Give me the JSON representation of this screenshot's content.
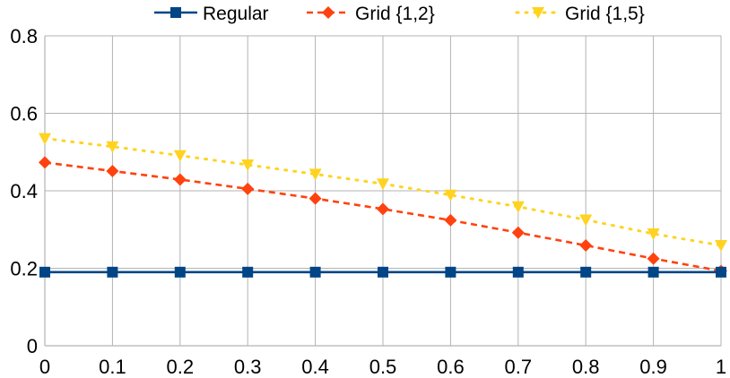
{
  "chart_data": {
    "type": "line",
    "title": "",
    "xlabel": "",
    "ylabel": "",
    "x": [
      0,
      0.1,
      0.2,
      0.3,
      0.4,
      0.5,
      0.6,
      0.7,
      0.8,
      0.9,
      1
    ],
    "x_tick_labels": [
      "0",
      "0.1",
      "0.2",
      "0.3",
      "0.4",
      "0.5",
      "0.6",
      "0.7",
      "0.8",
      "0.9",
      "1"
    ],
    "y_tick_labels": [
      "0",
      "0.2",
      "0.4",
      "0.6",
      "0.8"
    ],
    "y_ticks": [
      0,
      0.2,
      0.4,
      0.6,
      0.8
    ],
    "xlim": [
      0,
      1
    ],
    "ylim": [
      0,
      0.8
    ],
    "grid": true,
    "legend_position": "top",
    "series": [
      {
        "name": "Regular",
        "color": "#004586",
        "marker": "square",
        "line_style": "solid",
        "values": [
          0.19,
          0.19,
          0.19,
          0.19,
          0.19,
          0.19,
          0.19,
          0.19,
          0.19,
          0.19,
          0.19
        ]
      },
      {
        "name": "Grid {1,2}",
        "color": "#ff420e",
        "marker": "diamond",
        "line_style": "dashed",
        "values": [
          0.473,
          0.451,
          0.429,
          0.405,
          0.38,
          0.353,
          0.324,
          0.292,
          0.259,
          0.225,
          0.193
        ]
      },
      {
        "name": "Grid {1,5}",
        "color": "#ffd320",
        "marker": "triangle-down",
        "line_style": "dotted",
        "values": [
          0.535,
          0.514,
          0.491,
          0.467,
          0.443,
          0.418,
          0.389,
          0.359,
          0.325,
          0.289,
          0.259
        ]
      }
    ]
  }
}
